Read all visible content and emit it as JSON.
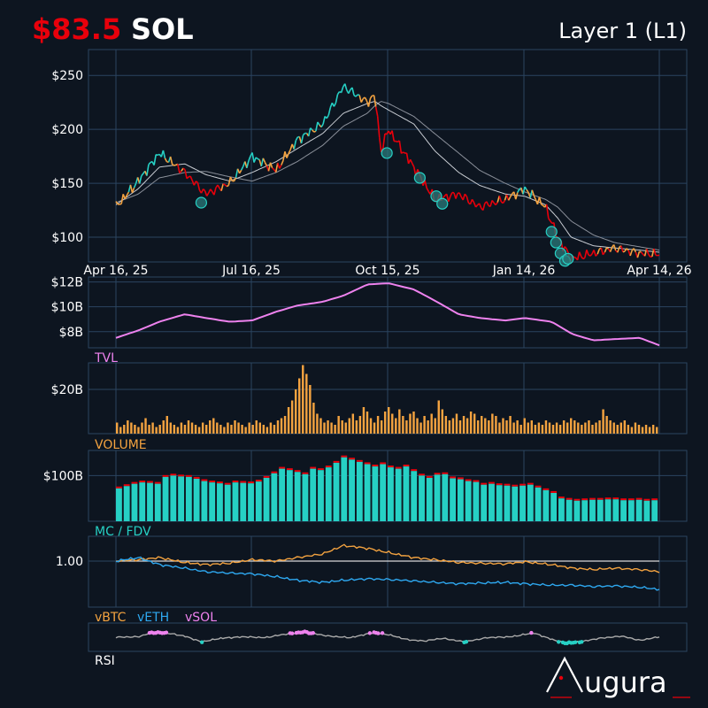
{
  "header": {
    "price": "$83.5",
    "ticker": "SOL",
    "category": "Layer 1 (L1)"
  },
  "brand": {
    "name": "ugura"
  },
  "colors": {
    "background": "#0d1520",
    "grid": "#2b4560",
    "up": "#26d0c4",
    "neutral": "#f4a340",
    "down": "#e8000b",
    "tvl": "#ee82ee",
    "volume": "#f4a340",
    "mc": "#26d0c4",
    "fdv": "#e8000b",
    "vbtc": "#f4a340",
    "veth": "#2ea8f0",
    "vsol": "#ee82ee",
    "rsi": "#aaaaaa"
  },
  "chart_data": [
    {
      "type": "line",
      "panel": "price",
      "x_ticks": [
        "Apr 16, 25",
        "Jul 16, 25",
        "Oct 15, 25",
        "Jan 14, 26",
        "Apr 14, 26"
      ],
      "y_ticks": [
        "$100",
        "$150",
        "$200",
        "$250"
      ],
      "ylim": [
        77,
        274
      ],
      "grid": true,
      "x": [
        "2025-04-16",
        "2025-05-01",
        "2025-05-15",
        "2025-06-01",
        "2025-06-15",
        "2025-07-01",
        "2025-07-16",
        "2025-08-01",
        "2025-08-15",
        "2025-09-01",
        "2025-09-15",
        "2025-10-01",
        "2025-10-06",
        "2025-10-10",
        "2025-10-15",
        "2025-11-01",
        "2025-11-15",
        "2025-12-01",
        "2025-12-15",
        "2026-01-01",
        "2026-01-14",
        "2026-01-28",
        "2026-02-05",
        "2026-02-14",
        "2026-03-01",
        "2026-03-15",
        "2026-04-01",
        "2026-04-14"
      ],
      "series": [
        {
          "values": [
            128,
            152,
            178,
            160,
            140,
            150,
            175,
            162,
            190,
            205,
            240,
            225,
            232,
            180,
            200,
            165,
            135,
            140,
            128,
            135,
            145,
            128,
            100,
            80,
            85,
            90,
            85,
            84
          ]
        },
        {
          "values": [
            130,
            145,
            165,
            168,
            158,
            152,
            160,
            170,
            182,
            196,
            215,
            224,
            226,
            222,
            218,
            205,
            180,
            160,
            148,
            140,
            138,
            130,
            118,
            100,
            92,
            90,
            88,
            86
          ]
        },
        {
          "values": [
            132,
            140,
            155,
            160,
            161,
            156,
            152,
            160,
            170,
            185,
            203,
            215,
            222,
            226,
            224,
            212,
            196,
            178,
            162,
            150,
            142,
            135,
            128,
            115,
            102,
            95,
            91,
            88
          ]
        }
      ],
      "signal_markers": [
        [
          "2025-06-12",
          132
        ],
        [
          "2025-10-14",
          178
        ],
        [
          "2025-11-05",
          155
        ],
        [
          "2025-11-16",
          138
        ],
        [
          "2025-11-20",
          131
        ],
        [
          "2026-02-01",
          105
        ],
        [
          "2026-02-04",
          95
        ],
        [
          "2026-02-07",
          85
        ],
        [
          "2026-02-10",
          78
        ],
        [
          "2026-02-12",
          80
        ]
      ]
    },
    {
      "type": "area",
      "panel": "tvl",
      "title": "TVL",
      "y_ticks": [
        "$8B",
        "$10B",
        "$12B"
      ],
      "ylim": [
        6.7,
        12.4
      ],
      "grid": true,
      "x": [
        "2025-04-16",
        "2025-05-01",
        "2025-05-15",
        "2025-06-01",
        "2025-06-15",
        "2025-07-01",
        "2025-07-16",
        "2025-08-01",
        "2025-08-15",
        "2025-09-01",
        "2025-09-15",
        "2025-10-01",
        "2025-10-15",
        "2025-11-01",
        "2025-11-15",
        "2025-12-01",
        "2025-12-15",
        "2026-01-01",
        "2026-01-14",
        "2026-02-01",
        "2026-02-15",
        "2026-03-01",
        "2026-03-15",
        "2026-04-01",
        "2026-04-14"
      ],
      "values": [
        7.5,
        8.1,
        8.8,
        9.4,
        9.1,
        8.8,
        8.9,
        9.6,
        10.1,
        10.4,
        10.9,
        11.8,
        11.9,
        11.4,
        10.5,
        9.4,
        9.1,
        8.9,
        9.1,
        8.8,
        7.8,
        7.3,
        7.4,
        7.5,
        6.9
      ]
    },
    {
      "type": "bar",
      "panel": "volume",
      "title": "VOLUME",
      "y_ticks": [
        "$20B"
      ],
      "ylim": [
        0,
        32
      ],
      "grid": true,
      "x_range": [
        "2025-04-16",
        "2026-04-14"
      ],
      "values": [
        5,
        3,
        4,
        6,
        5,
        4,
        3,
        5,
        7,
        4,
        5,
        3,
        4,
        6,
        8,
        5,
        4,
        3,
        5,
        4,
        6,
        5,
        4,
        3,
        5,
        4,
        6,
        7,
        5,
        4,
        3,
        5,
        4,
        6,
        5,
        4,
        3,
        5,
        4,
        6,
        5,
        4,
        3,
        5,
        4,
        6,
        7,
        8,
        12,
        15,
        20,
        25,
        31,
        27,
        22,
        14,
        9,
        7,
        5,
        6,
        5,
        4,
        8,
        6,
        5,
        7,
        9,
        6,
        8,
        12,
        10,
        7,
        5,
        8,
        6,
        10,
        12,
        9,
        7,
        11,
        8,
        6,
        9,
        10,
        7,
        5,
        8,
        6,
        9,
        7,
        15,
        11,
        8,
        6,
        7,
        9,
        6,
        8,
        7,
        10,
        9,
        6,
        8,
        7,
        6,
        9,
        8,
        5,
        7,
        6,
        8,
        5,
        6,
        4,
        7,
        5,
        6,
        4,
        5,
        4,
        6,
        5,
        4,
        5,
        4,
        6,
        5,
        7,
        6,
        5,
        4,
        5,
        6,
        4,
        5,
        6,
        11,
        8,
        6,
        5,
        4,
        5,
        6,
        4,
        3,
        5,
        4,
        3,
        4,
        3,
        4,
        3
      ]
    },
    {
      "type": "bar",
      "panel": "mc_fdv",
      "title": "MC / FDV",
      "y_ticks": [
        "$100B"
      ],
      "ylim": [
        0,
        155
      ],
      "grid": true,
      "x_range": [
        "2025-04-16",
        "2026-04-14"
      ],
      "series": [
        {
          "values": [
            72,
            77,
            82,
            85,
            84,
            82,
            97,
            100,
            98,
            97,
            93,
            88,
            85,
            83,
            80,
            85,
            84,
            83,
            87,
            95,
            105,
            115,
            112,
            108,
            103,
            115,
            112,
            118,
            128,
            140,
            135,
            130,
            125,
            120,
            125,
            118,
            115,
            120,
            110,
            100,
            95,
            102,
            103,
            94,
            92,
            88,
            86,
            80,
            82,
            79,
            78,
            76,
            78,
            80,
            74,
            68,
            62,
            50,
            47,
            45,
            46,
            47,
            47,
            48,
            48,
            46,
            46,
            47,
            45,
            46
          ]
        },
        {
          "values": [
            76,
            81,
            86,
            89,
            88,
            86,
            101,
            104,
            102,
            101,
            97,
            92,
            89,
            87,
            84,
            89,
            88,
            87,
            91,
            99,
            109,
            119,
            116,
            112,
            107,
            119,
            116,
            122,
            132,
            144,
            139,
            134,
            129,
            124,
            129,
            122,
            119,
            124,
            114,
            104,
            99,
            106,
            107,
            98,
            96,
            92,
            90,
            84,
            86,
            83,
            82,
            80,
            82,
            84,
            78,
            72,
            66,
            54,
            51,
            49,
            50,
            51,
            51,
            52,
            52,
            50,
            50,
            51,
            49,
            50
          ]
        }
      ]
    },
    {
      "type": "line",
      "panel": "relative",
      "y_ticks": [
        "1.00"
      ],
      "ylim": [
        0.35,
        1.35
      ],
      "grid": true,
      "x": [
        "2025-04-16",
        "2025-05-01",
        "2025-05-15",
        "2025-06-01",
        "2025-06-15",
        "2025-07-01",
        "2025-07-16",
        "2025-08-01",
        "2025-08-15",
        "2025-09-01",
        "2025-09-15",
        "2025-10-01",
        "2025-10-15",
        "2025-11-01",
        "2025-11-15",
        "2025-12-01",
        "2025-12-15",
        "2026-01-01",
        "2026-01-14",
        "2026-02-01",
        "2026-02-15",
        "2026-03-01",
        "2026-03-15",
        "2026-04-01",
        "2026-04-14"
      ],
      "series": [
        {
          "name": "vBTC",
          "values": [
            1.0,
            1.02,
            1.05,
            0.98,
            0.95,
            0.97,
            1.02,
            1.0,
            1.05,
            1.1,
            1.22,
            1.18,
            1.12,
            1.05,
            1.02,
            0.98,
            0.97,
            0.96,
            0.99,
            0.95,
            0.9,
            0.88,
            0.9,
            0.88,
            0.85
          ]
        },
        {
          "name": "vETH",
          "values": [
            1.0,
            1.05,
            0.95,
            0.9,
            0.85,
            0.83,
            0.82,
            0.78,
            0.73,
            0.7,
            0.73,
            0.75,
            0.74,
            0.72,
            0.7,
            0.68,
            0.69,
            0.7,
            0.68,
            0.66,
            0.66,
            0.64,
            0.65,
            0.63,
            0.6
          ]
        },
        {
          "name": "vSOL",
          "values": [
            1.0,
            1.0,
            1.0,
            1.0,
            1.0,
            1.0,
            1.0,
            1.0,
            1.0,
            1.0,
            1.0,
            1.0,
            1.0,
            1.0,
            1.0,
            1.0,
            1.0,
            1.0,
            1.0,
            1.0,
            1.0,
            1.0,
            1.0,
            1.0,
            1.0
          ]
        }
      ]
    },
    {
      "type": "line",
      "panel": "rsi",
      "title": "RSI",
      "ylim": [
        0,
        100
      ],
      "grid": false,
      "x": [
        "2025-04-16",
        "2025-05-01",
        "2025-05-10",
        "2025-05-20",
        "2025-06-01",
        "2025-06-12",
        "2025-06-25",
        "2025-07-10",
        "2025-07-25",
        "2025-08-05",
        "2025-08-20",
        "2025-09-05",
        "2025-09-20",
        "2025-10-05",
        "2025-10-15",
        "2025-10-28",
        "2025-11-08",
        "2025-11-20",
        "2025-12-05",
        "2025-12-20",
        "2026-01-05",
        "2026-01-20",
        "2026-02-01",
        "2026-02-10",
        "2026-02-20",
        "2026-03-05",
        "2026-03-20",
        "2026-04-01",
        "2026-04-14"
      ],
      "values": [
        50,
        52,
        72,
        70,
        55,
        28,
        45,
        52,
        48,
        62,
        75,
        55,
        48,
        72,
        62,
        38,
        32,
        45,
        28,
        48,
        52,
        70,
        40,
        22,
        28,
        45,
        55,
        35,
        52
      ]
    }
  ]
}
